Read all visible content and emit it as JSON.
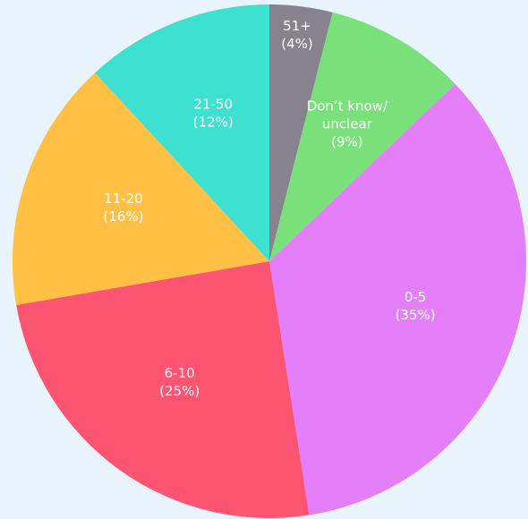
{
  "chart_data": {
    "type": "pie",
    "categories": [
      "51+",
      "Don’t know/ unclear",
      "0-5",
      "6-10",
      "11-20",
      "21-50"
    ],
    "values": [
      4,
      9,
      35,
      25,
      16,
      12
    ],
    "value_labels": [
      "(4%)",
      "(9%)",
      "(35%)",
      "(25%)",
      "(16%)",
      "(12%)"
    ],
    "colors": [
      "#86838f",
      "#79e07a",
      "#e57ff9",
      "#fd5472",
      "#ffc043",
      "#3ee0d0"
    ]
  }
}
